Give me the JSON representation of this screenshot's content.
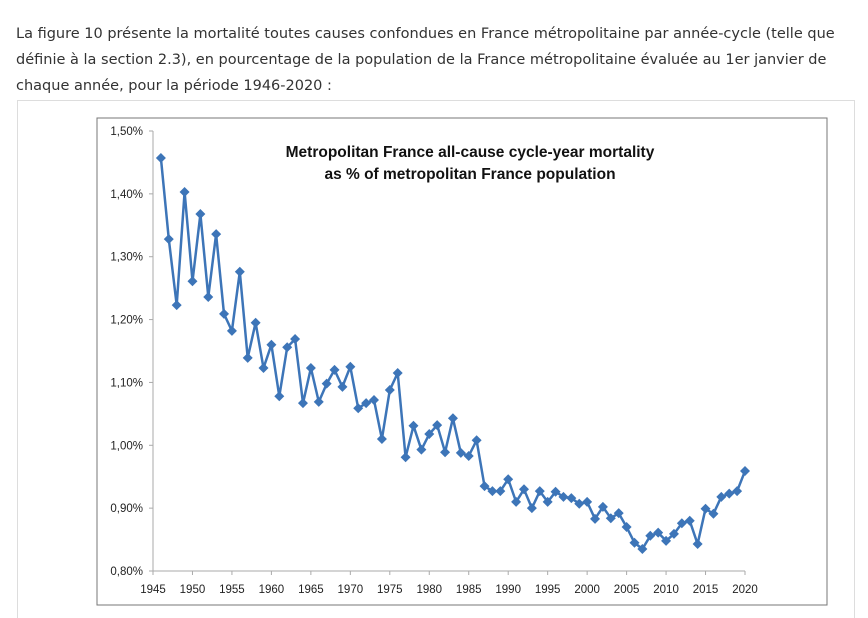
{
  "intro_text": "La figure 10 présente la mortalité toutes causes confondues en France métropolitaine par année-cycle (telle que définie à la section 2.3), en pourcentage de la population de la France métropolitaine évaluée au 1er janvier de chaque année, pour la période 1946-2020 :",
  "chart_data": {
    "type": "line",
    "title": [
      "Metropolitan France all-cause cycle-year mortality",
      "as % of metropolitan France population"
    ],
    "xlabel": "",
    "ylabel": "",
    "xlim": [
      1945,
      2020
    ],
    "ylim": [
      0.8,
      1.5
    ],
    "x_ticks": [
      1945,
      1950,
      1955,
      1960,
      1965,
      1970,
      1975,
      1980,
      1985,
      1990,
      1995,
      2000,
      2005,
      2010,
      2015,
      2020
    ],
    "y_ticks": [
      0.8,
      0.9,
      1.0,
      1.1,
      1.2,
      1.3,
      1.4,
      1.5
    ],
    "y_tick_labels": [
      "0,80%",
      "0,90%",
      "1,00%",
      "1,10%",
      "1,20%",
      "1,30%",
      "1,40%",
      "1,50%"
    ],
    "grid": false,
    "series_color": "#3d75b8",
    "x": [
      1946,
      1947,
      1948,
      1949,
      1950,
      1951,
      1952,
      1953,
      1954,
      1955,
      1956,
      1957,
      1958,
      1959,
      1960,
      1961,
      1962,
      1963,
      1964,
      1965,
      1966,
      1967,
      1968,
      1969,
      1970,
      1971,
      1972,
      1973,
      1974,
      1975,
      1976,
      1977,
      1978,
      1979,
      1980,
      1981,
      1982,
      1983,
      1984,
      1985,
      1986,
      1987,
      1988,
      1989,
      1990,
      1991,
      1992,
      1993,
      1994,
      1995,
      1996,
      1997,
      1998,
      1999,
      2000,
      2001,
      2002,
      2003,
      2004,
      2005,
      2006,
      2007,
      2008,
      2009,
      2010,
      2011,
      2012,
      2013,
      2014,
      2015,
      2016,
      2017,
      2018,
      2019,
      2020
    ],
    "values": [
      1.457,
      1.328,
      1.223,
      1.403,
      1.261,
      1.368,
      1.236,
      1.336,
      1.209,
      1.182,
      1.276,
      1.139,
      1.195,
      1.123,
      1.16,
      1.078,
      1.156,
      1.169,
      1.067,
      1.123,
      1.069,
      1.098,
      1.12,
      1.093,
      1.125,
      1.059,
      1.067,
      1.072,
      1.01,
      1.088,
      1.115,
      0.981,
      1.031,
      0.993,
      1.018,
      1.032,
      0.989,
      1.043,
      0.988,
      0.983,
      1.008,
      0.935,
      0.927,
      0.927,
      0.946,
      0.91,
      0.93,
      0.9,
      0.927,
      0.91,
      0.926,
      0.918,
      0.916,
      0.907,
      0.91,
      0.883,
      0.902,
      0.884,
      0.892,
      0.87,
      0.845,
      0.835,
      0.856,
      0.861,
      0.848,
      0.859,
      0.876,
      0.88,
      0.843,
      0.899,
      0.891,
      0.918,
      0.923,
      0.927,
      0.959
    ]
  }
}
